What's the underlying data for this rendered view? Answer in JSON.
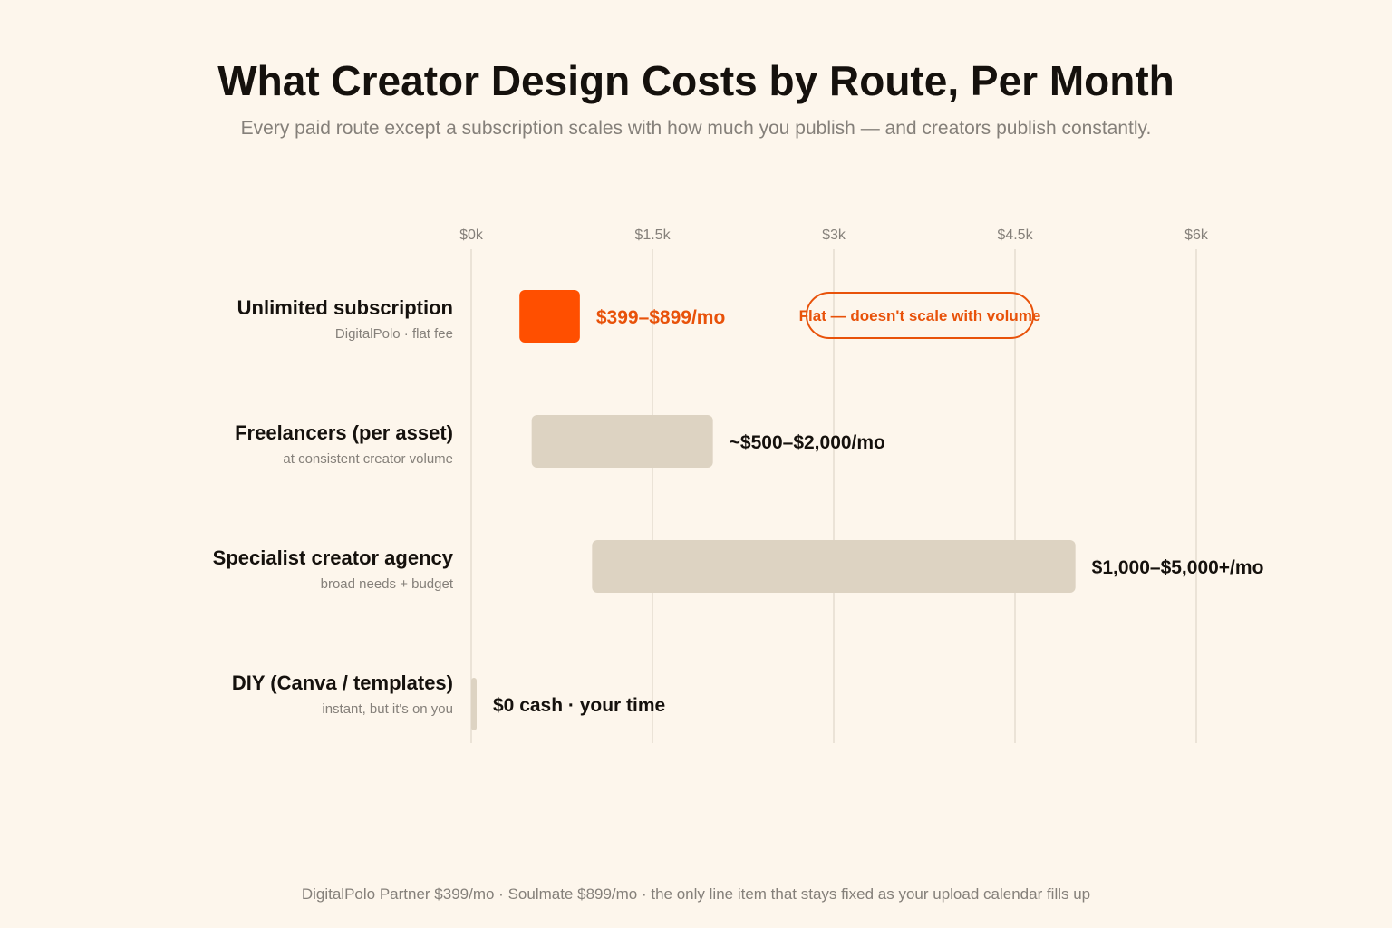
{
  "header": {
    "title": "What Creator Design Costs by Route, Per Month",
    "subtitle": "Every paid route except a subscription scales with how much you publish — and creators publish constantly."
  },
  "footer": {
    "note": "DigitalPolo Partner $399/mo · Soulmate $899/mo · the only line item that stays fixed as your upload calendar fills up"
  },
  "colors": {
    "accent": "#ff4f00",
    "accent_text": "#e8520a",
    "bar_neutral": "#ddd3c2",
    "grid": "#ebe3d7",
    "text_dark": "#15110d",
    "text_muted": "#85807a",
    "background": "#fdf6ec"
  },
  "chart_data": {
    "type": "bar",
    "orientation": "horizontal",
    "subtype": "floating-range",
    "xlim": [
      0,
      6000
    ],
    "x_ticks": [
      0,
      1500,
      3000,
      4500,
      6000
    ],
    "x_tick_labels": [
      "$0k",
      "$1.5k",
      "$3k",
      "$4.5k",
      "$6k"
    ],
    "grid": "vertical",
    "categories": [
      {
        "label": "Unlimited subscription",
        "sublabel": "DigitalPolo · flat fee",
        "range": [
          399,
          899
        ],
        "value_label": "$399–$899/mo",
        "highlight": true,
        "annotation": "Flat — doesn't scale with volume"
      },
      {
        "label": "Freelancers (per asset)",
        "sublabel": "at consistent creator volume",
        "range": [
          500,
          2000
        ],
        "value_label": "~$500–$2,000/mo",
        "highlight": false
      },
      {
        "label": "Specialist creator agency",
        "sublabel": "broad needs + budget",
        "range": [
          1000,
          5000
        ],
        "value_label": "$1,000–$5,000+/mo",
        "highlight": false
      },
      {
        "label": "DIY (Canva / templates)",
        "sublabel": "instant, but it's on you",
        "range": [
          0,
          0
        ],
        "value_label": "$0 cash · your time",
        "highlight": false
      }
    ]
  }
}
